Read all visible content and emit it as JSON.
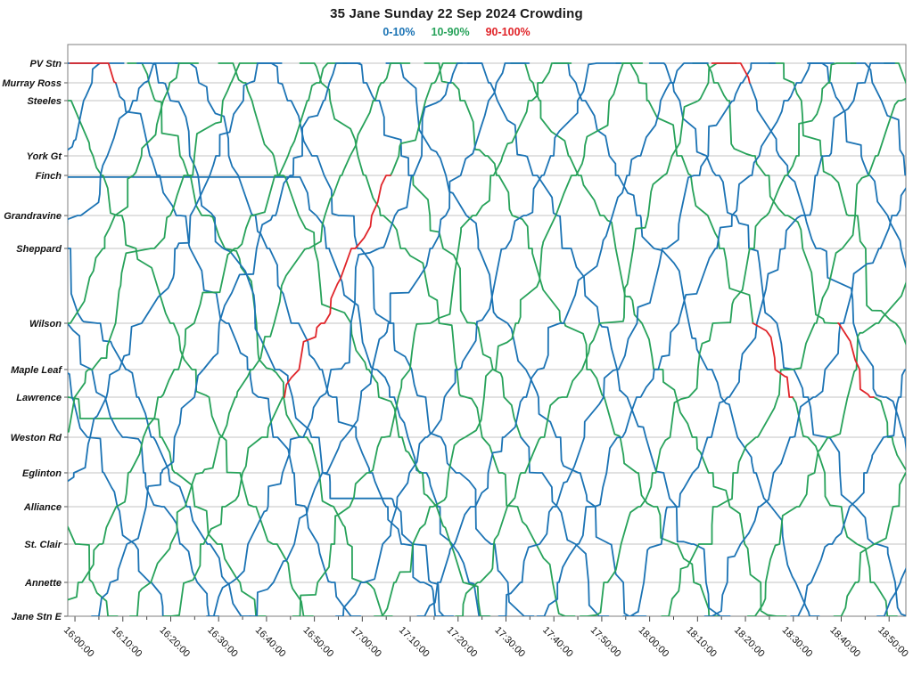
{
  "title": "35 Jane Sunday 22 Sep 2024 Crowding",
  "legend": {
    "items": [
      {
        "label": "0-10%",
        "level": "L",
        "color": "#1b73b4"
      },
      {
        "label": "10-90%",
        "level": "M",
        "color": "#27a25a"
      },
      {
        "label": "90-100%",
        "level": "H",
        "color": "#e02429"
      }
    ]
  },
  "chart_data": {
    "type": "line",
    "variant": "marey-string-diagram",
    "title": "35 Jane Sunday 22 Sep 2024 Crowding",
    "grid": "horizontal-station-lines",
    "x_axis": {
      "window_start": "15:58:30",
      "window_end": "18:53:30",
      "major_tick_minutes": 10,
      "minor_tick_minutes": 5,
      "tick_labels": [
        "16:00:00",
        "16:10:00",
        "16:20:00",
        "16:30:00",
        "16:40:00",
        "16:50:00",
        "17:00:00",
        "17:10:00",
        "17:20:00",
        "17:30:00",
        "17:40:00",
        "17:50:00",
        "18:00:00",
        "18:10:00",
        "18:20:00",
        "18:30:00",
        "18:40:00",
        "18:50:00"
      ]
    },
    "y_axis": {
      "stations": [
        {
          "name": "PV Stn",
          "pos": 0.0
        },
        {
          "name": "Murray Ross",
          "pos": 0.0354
        },
        {
          "name": "Steeles",
          "pos": 0.0676
        },
        {
          "name": "York Gt",
          "pos": 0.1675
        },
        {
          "name": "Finch",
          "pos": 0.2029
        },
        {
          "name": "Grandravine",
          "pos": 0.2754
        },
        {
          "name": "Sheppard",
          "pos": 0.3349
        },
        {
          "name": "Wilson",
          "pos": 0.4702
        },
        {
          "name": "Maple Leaf",
          "pos": 0.5539
        },
        {
          "name": "Lawrence",
          "pos": 0.6039
        },
        {
          "name": "Weston Rd",
          "pos": 0.6763
        },
        {
          "name": "Eglinton",
          "pos": 0.7407
        },
        {
          "name": "Alliance",
          "pos": 0.8019
        },
        {
          "name": "St. Clair",
          "pos": 0.8696
        },
        {
          "name": "Annette",
          "pos": 0.9388
        },
        {
          "name": "Jane Stn E",
          "pos": 1.0
        }
      ]
    },
    "crowding_levels": {
      "L": "0-10%",
      "M": "10-90%",
      "H": "90-100%"
    },
    "trip_defaults": {
      "SB": {
        "pre": 3,
        "post": 2
      },
      "NB": {
        "pre": 1.5,
        "post": 5
      }
    },
    "trips": [
      {
        "d": "SB",
        "dep": "15:16",
        "dur": 48,
        "lv": "M"
      },
      {
        "d": "SB",
        "dep": "15:21",
        "dur": 56,
        "lv": "M",
        "holds": [
          {
            "p": 0.6425,
            "until": "16:16"
          }
        ]
      },
      {
        "d": "SB",
        "dep": "15:26",
        "dur": 50,
        "lv": "L"
      },
      {
        "d": "SB",
        "dep": "15:33",
        "dur": 52,
        "lv": "L"
      },
      {
        "d": "SB",
        "dep": "15:40",
        "dur": 50,
        "lv": "L"
      },
      {
        "d": "SB",
        "dep": "15:45",
        "dur": 42,
        "lv": "L",
        "holds": [
          {
            "p": 0.206,
            "until": "16:47"
          }
        ]
      },
      {
        "d": "SB",
        "dep": "15:54",
        "dur": 48,
        "lv": "M"
      },
      {
        "d": "SB",
        "dep": "16:07",
        "dur": 46,
        "lv": "HLLLLLLLLLLLLLL",
        "pre": 8
      },
      {
        "d": "SB",
        "dep": "16:14",
        "dur": 48,
        "lv": "M"
      },
      {
        "d": "SB",
        "dep": "16:16",
        "dur": 46,
        "lv": "L",
        "holds": [
          {
            "p": 0.787,
            "until": "17:06"
          }
        ]
      },
      {
        "d": "SB",
        "dep": "16:24",
        "dur": 47,
        "lv": "L"
      },
      {
        "d": "SB",
        "dep": "16:33",
        "dur": 49,
        "lv": "M"
      },
      {
        "d": "SB",
        "dep": "16:41",
        "dur": 48,
        "lv": "L"
      },
      {
        "d": "SB",
        "dep": "16:50",
        "dur": 50,
        "lv": "M"
      },
      {
        "d": "SB",
        "dep": "16:59",
        "dur": 47,
        "lv": "LLLLMMMMMMLLLLL"
      },
      {
        "d": "SB",
        "dep": "17:08",
        "dur": 48,
        "lv": "L"
      },
      {
        "d": "SB",
        "dep": "17:16",
        "dur": 50,
        "lv": "M"
      },
      {
        "d": "SB",
        "dep": "17:25",
        "dur": 48,
        "lv": "L"
      },
      {
        "d": "SB",
        "dep": "17:34",
        "dur": 49,
        "lv": "M"
      },
      {
        "d": "SB",
        "dep": "17:43",
        "dur": 47,
        "lv": "L"
      },
      {
        "d": "SB",
        "dep": "17:56",
        "dur": 50,
        "lv": "MMMMMMMHHMMMMMM"
      },
      {
        "d": "SB",
        "dep": "18:03",
        "dur": 48,
        "lv": "L"
      },
      {
        "d": "SB",
        "dep": "18:12",
        "dur": 50,
        "lv": "MMMMMMMHHMMMMMM"
      },
      {
        "d": "SB",
        "dep": "18:19",
        "dur": 46,
        "lv": "HLLLLLLLLLLLLLL",
        "pre": 6
      },
      {
        "d": "SB",
        "dep": "18:28",
        "dur": 47,
        "lv": "M"
      },
      {
        "d": "SB",
        "dep": "18:36",
        "dur": 48,
        "lv": "L"
      },
      {
        "d": "SB",
        "dep": "18:45",
        "dur": 48,
        "lv": "L"
      },
      {
        "d": "SB",
        "dep": "18:52",
        "dur": 46,
        "lv": "M"
      },
      {
        "d": "NB",
        "dep": "15:05",
        "dur": 50,
        "lv": "L",
        "post": 6
      },
      {
        "d": "NB",
        "dep": "15:14",
        "dur": 48,
        "lv": "L"
      },
      {
        "d": "NB",
        "dep": "15:22",
        "dur": 50,
        "lv": "L"
      },
      {
        "d": "NB",
        "dep": "15:31",
        "dur": 48,
        "lv": "M",
        "post": 4
      },
      {
        "d": "NB",
        "dep": "15:40",
        "dur": 50,
        "lv": "M",
        "post": 4
      },
      {
        "d": "NB",
        "dep": "15:49",
        "dur": 48,
        "lv": "L"
      },
      {
        "d": "NB",
        "dep": "15:57",
        "dur": 50,
        "lv": "M",
        "post": 4
      },
      {
        "d": "NB",
        "dep": "16:05",
        "dur": 48,
        "lv": "L"
      },
      {
        "d": "NB",
        "dep": "16:13",
        "dur": 50,
        "lv": "M",
        "post": 4
      },
      {
        "d": "NB",
        "dep": "16:20",
        "dur": 52,
        "lv": "MMMMHHHHHMMMMMM",
        "post": 4
      },
      {
        "d": "NB",
        "dep": "16:29",
        "dur": 49,
        "lv": "L"
      },
      {
        "d": "NB",
        "dep": "16:38",
        "dur": 50,
        "lv": "L"
      },
      {
        "d": "NB",
        "dep": "16:47",
        "dur": 48,
        "lv": "M",
        "post": 4
      },
      {
        "d": "NB",
        "dep": "16:56",
        "dur": 50,
        "lv": "L"
      },
      {
        "d": "NB",
        "dep": "17:04",
        "dur": 48,
        "lv": "M",
        "post": 4
      },
      {
        "d": "NB",
        "dep": "17:13",
        "dur": 49,
        "lv": "L"
      },
      {
        "d": "NB",
        "dep": "17:21",
        "dur": 50,
        "lv": "M",
        "post": 4
      },
      {
        "d": "NB",
        "dep": "17:30",
        "dur": 48,
        "lv": "L"
      },
      {
        "d": "NB",
        "dep": "17:38",
        "dur": 50,
        "lv": "L"
      },
      {
        "d": "NB",
        "dep": "17:47",
        "dur": 48,
        "lv": "M",
        "post": 4
      },
      {
        "d": "NB",
        "dep": "17:56",
        "dur": 49,
        "lv": "L"
      },
      {
        "d": "NB",
        "dep": "18:04",
        "dur": 48,
        "lv": "M",
        "post": 4
      },
      {
        "d": "NB",
        "dep": "18:13",
        "dur": 49,
        "lv": "L"
      },
      {
        "d": "NB",
        "dep": "18:22",
        "dur": 48,
        "lv": "M",
        "post": 4
      },
      {
        "d": "NB",
        "dep": "18:31",
        "dur": 50,
        "lv": "L"
      },
      {
        "d": "NB",
        "dep": "18:40",
        "dur": 48,
        "lv": "M",
        "post": 4
      },
      {
        "d": "NB",
        "dep": "18:49",
        "dur": 47,
        "lv": "L"
      }
    ]
  }
}
